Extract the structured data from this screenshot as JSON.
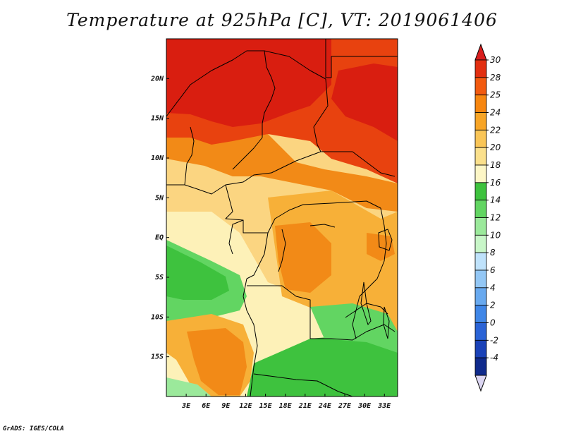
{
  "title": "Temperature at 925hPa [C], VT: 2019061406",
  "credit": "GrADS: IGES/COLA",
  "map": {
    "lat_range": [
      -20,
      25
    ],
    "lon_range": [
      0,
      35
    ],
    "lat_ticks": [
      {
        "value": 20,
        "label": "20N"
      },
      {
        "value": 15,
        "label": "15N"
      },
      {
        "value": 10,
        "label": "10N"
      },
      {
        "value": 5,
        "label": "5N"
      },
      {
        "value": 0,
        "label": "EQ"
      },
      {
        "value": -5,
        "label": "5S"
      },
      {
        "value": -10,
        "label": "10S"
      },
      {
        "value": -15,
        "label": "15S"
      }
    ],
    "lon_ticks": [
      {
        "value": 3,
        "label": "3E"
      },
      {
        "value": 6,
        "label": "6E"
      },
      {
        "value": 9,
        "label": "9E"
      },
      {
        "value": 12,
        "label": "12E"
      },
      {
        "value": 15,
        "label": "15E"
      },
      {
        "value": 18,
        "label": "18E"
      },
      {
        "value": 21,
        "label": "21E"
      },
      {
        "value": 24,
        "label": "24E"
      },
      {
        "value": 27,
        "label": "27E"
      },
      {
        "value": 30,
        "label": "30E"
      },
      {
        "value": 33,
        "label": "33E"
      }
    ]
  },
  "colorbar": {
    "top_arrow_color": "#d91e1e",
    "bottom_arrow_color": "#dcd6f2",
    "bins": [
      {
        "color": "#e22f10"
      },
      {
        "color": "#f25a0f"
      },
      {
        "color": "#f7860f"
      },
      {
        "color": "#f8a526"
      },
      {
        "color": "#f9c557"
      },
      {
        "color": "#fbe08c"
      },
      {
        "color": "#fdf6c6"
      },
      {
        "color": "#3ec23e"
      },
      {
        "color": "#62d562"
      },
      {
        "color": "#9be99b"
      },
      {
        "color": "#c8f6c8"
      },
      {
        "color": "#bfe2fb"
      },
      {
        "color": "#93c7f5"
      },
      {
        "color": "#68a9ef"
      },
      {
        "color": "#3f86e7"
      },
      {
        "color": "#2a63d6"
      },
      {
        "color": "#1a42b8"
      },
      {
        "color": "#0f2a8c"
      }
    ],
    "labels": [
      "30",
      "28",
      "25",
      "24",
      "22",
      "20",
      "18",
      "16",
      "14",
      "12",
      "10",
      "8",
      "6",
      "4",
      "2",
      "0",
      "-2",
      "-4"
    ]
  },
  "field_colors": {
    "hot": "#d91e10",
    "very_warm": "#e8420f",
    "warm": "#f28a17",
    "mild_warm": "#f7b038",
    "mild": "#fbd581",
    "cool_mild": "#fdf1b8",
    "green_light": "#9be99b",
    "green": "#62d562",
    "green_dark": "#3ec23e"
  }
}
